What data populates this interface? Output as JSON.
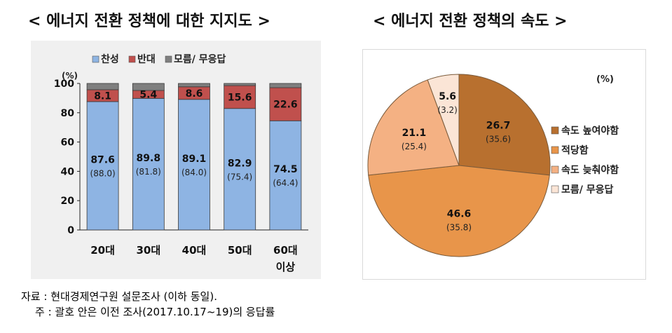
{
  "titles": {
    "left": "< 에너지 전환 정책에 대한 지지도 >",
    "right": "< 에너지 전환 정책의 속도 >"
  },
  "chart_data": [
    {
      "type": "bar",
      "stacked": true,
      "unit": "(%)",
      "categories": [
        "20대",
        "30대",
        "40대",
        "50대",
        "60대\n이상"
      ],
      "series": [
        {
          "name": "찬성",
          "color": "#8eb4e3",
          "values": [
            87.6,
            89.8,
            89.1,
            82.9,
            74.5
          ],
          "previous": [
            88.0,
            81.8,
            84.0,
            75.4,
            64.4
          ]
        },
        {
          "name": "반대",
          "color": "#c0504d",
          "values": [
            8.1,
            5.4,
            8.6,
            15.6,
            22.6
          ]
        },
        {
          "name": "모름/ 무응답",
          "color": "#7f7f7f",
          "values": [
            4.3,
            4.8,
            2.3,
            1.5,
            2.9
          ]
        }
      ],
      "ylim": [
        0,
        100
      ],
      "yticks": [
        0,
        20,
        40,
        60,
        80,
        100
      ],
      "legend": "top"
    },
    {
      "type": "pie",
      "unit": "(%)",
      "slices": [
        {
          "label": "속도 높여야함",
          "value": 26.7,
          "previous": 35.6,
          "color": "#b8702f"
        },
        {
          "label": "적당함",
          "value": 46.6,
          "previous": 35.8,
          "color": "#e8954a"
        },
        {
          "label": "속도 늦춰야함",
          "value": 21.1,
          "previous": 25.4,
          "color": "#f4b183"
        },
        {
          "label": "모름/ 무응답",
          "value": 5.6,
          "previous": 3.2,
          "color": "#fbe5d6"
        }
      ],
      "legend": "right"
    }
  ],
  "notes": {
    "source": "자료 : 현대경제연구원 설문조사 (이하 동일).",
    "note": "주 : 괄호 안은 이전 조사(2017.10.17~19)의 응답률"
  }
}
